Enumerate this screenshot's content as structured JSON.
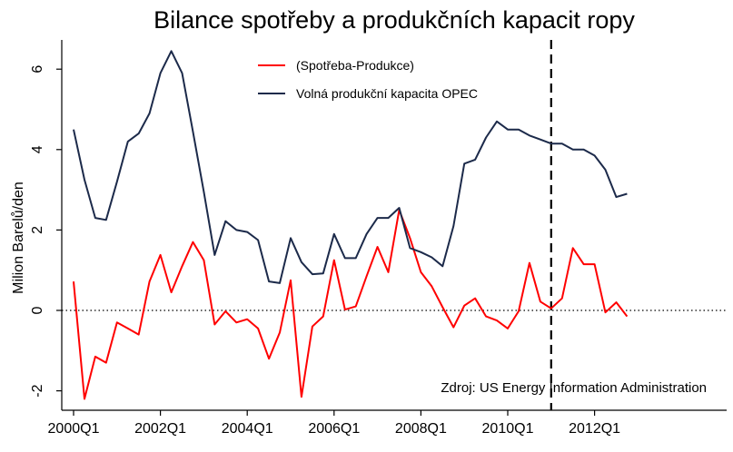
{
  "chart_data": {
    "type": "line",
    "title": "Bilance spotřeby a produkčních kapacit ropy",
    "xlabel": "",
    "ylabel": "Milion Barelů/den",
    "x_ticks": [
      "2000Q1",
      "2002Q1",
      "2004Q1",
      "2006Q1",
      "2008Q1",
      "2010Q1",
      "2012Q1"
    ],
    "y_ticks": [
      "-2",
      "0",
      "2",
      "4",
      "6"
    ],
    "ylim": [
      -2.3,
      6.6
    ],
    "xlim": [
      "2000Q1",
      "2012Q4"
    ],
    "grid": false,
    "legend_position": "top-center",
    "reference_line": {
      "y": 0,
      "style": "dotted"
    },
    "marker_line": {
      "x": "2011Q1",
      "style": "dashed"
    },
    "annotation": "Zdroj: US Energy Information Administration",
    "x": [
      "2000Q1",
      "2000Q2",
      "2000Q3",
      "2000Q4",
      "2001Q1",
      "2001Q2",
      "2001Q3",
      "2001Q4",
      "2002Q1",
      "2002Q2",
      "2002Q3",
      "2002Q4",
      "2003Q1",
      "2003Q2",
      "2003Q3",
      "2003Q4",
      "2004Q1",
      "2004Q2",
      "2004Q3",
      "2004Q4",
      "2005Q1",
      "2005Q2",
      "2005Q3",
      "2005Q4",
      "2006Q1",
      "2006Q2",
      "2006Q3",
      "2006Q4",
      "2007Q1",
      "2007Q2",
      "2007Q3",
      "2007Q4",
      "2008Q1",
      "2008Q2",
      "2008Q3",
      "2008Q4",
      "2009Q1",
      "2009Q2",
      "2009Q3",
      "2009Q4",
      "2010Q1",
      "2010Q2",
      "2010Q3",
      "2010Q4",
      "2011Q1",
      "2011Q2",
      "2011Q3",
      "2011Q4",
      "2012Q1",
      "2012Q2",
      "2012Q3",
      "2012Q4"
    ],
    "series": [
      {
        "name": "(Spotřeba-Produkce)",
        "color": "#ff0000",
        "values": [
          0.72,
          -2.2,
          -1.15,
          -1.3,
          -0.3,
          -0.45,
          -0.6,
          0.72,
          1.38,
          0.45,
          1.1,
          1.7,
          1.25,
          -0.35,
          -0.02,
          -0.3,
          -0.22,
          -0.45,
          -1.2,
          -0.55,
          0.75,
          -2.15,
          -0.4,
          -0.15,
          1.25,
          0.02,
          0.1,
          0.85,
          1.58,
          0.95,
          2.5,
          1.8,
          0.95,
          0.6,
          0.08,
          -0.42,
          0.12,
          0.3,
          -0.15,
          -0.25,
          -0.45,
          -0.02,
          1.18,
          0.22,
          0.05,
          0.3,
          1.55,
          1.15,
          1.15,
          -0.05,
          0.2,
          -0.15
        ]
      },
      {
        "name": "Volná produkční kapacita OPEC",
        "color": "#1c2a4a",
        "values": [
          4.5,
          3.25,
          2.3,
          2.25,
          3.2,
          4.2,
          4.4,
          4.9,
          5.9,
          6.45,
          5.9,
          4.45,
          2.95,
          1.38,
          2.22,
          2.0,
          1.95,
          1.75,
          0.72,
          0.68,
          1.8,
          1.2,
          0.9,
          0.92,
          1.9,
          1.3,
          1.3,
          1.9,
          2.3,
          2.3,
          2.55,
          1.55,
          1.45,
          1.32,
          1.1,
          2.1,
          3.65,
          3.75,
          4.3,
          4.7,
          4.5,
          4.5,
          4.35,
          4.25,
          4.15,
          4.15,
          4.0,
          4.0,
          3.85,
          3.5,
          2.82,
          2.9
        ]
      }
    ]
  }
}
